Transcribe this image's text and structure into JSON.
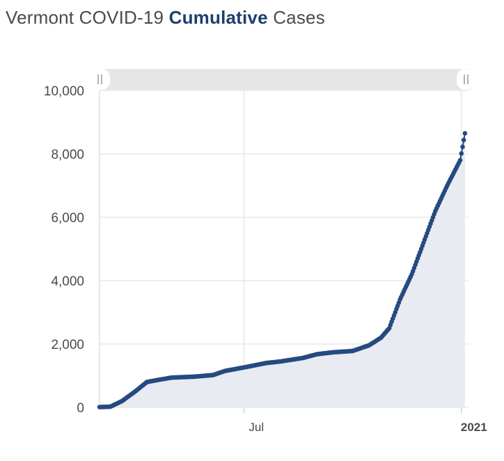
{
  "title": {
    "prefix": "Vermont COVID-19",
    "emphasis": "Cumulative",
    "suffix": "Cases"
  },
  "colors": {
    "series": "#254a80",
    "area_fill": "#e8ebf2",
    "grid": "#dcdcdc",
    "axis_text": "#4a4a4a",
    "navigator_bar": "#e6e6e6"
  },
  "chart_data": {
    "type": "area",
    "title": "Vermont COVID-19 Cumulative Cases",
    "xlabel": "",
    "ylabel": "",
    "ylim": [
      0,
      10000
    ],
    "yticks": [
      0,
      2000,
      4000,
      6000,
      8000,
      10000
    ],
    "ytick_labels": [
      "0",
      "2,000",
      "4,000",
      "6,000",
      "8,000",
      "10,000"
    ],
    "xlim": [
      "2020-03-01",
      "2021-01-07"
    ],
    "xticks": [
      {
        "date": "2020-07-01",
        "label": "Jul",
        "bold": false
      },
      {
        "date": "2021-01-01",
        "label": "2021",
        "bold": true
      }
    ],
    "grid": true,
    "markers": true,
    "series": [
      {
        "x": [
          "2020-03-01",
          "2020-03-10",
          "2020-03-20",
          "2020-03-31",
          "2020-04-10",
          "2020-04-20",
          "2020-05-01",
          "2020-05-20",
          "2020-06-05",
          "2020-06-15",
          "2020-07-01",
          "2020-07-20",
          "2020-08-01",
          "2020-08-20",
          "2020-09-01",
          "2020-09-15",
          "2020-10-01",
          "2020-10-15",
          "2020-10-25",
          "2020-11-01",
          "2020-11-10",
          "2020-11-20",
          "2020-11-30",
          "2020-12-10",
          "2020-12-20",
          "2020-12-31",
          "2021-01-04"
        ],
        "y": [
          10,
          20,
          200,
          500,
          800,
          870,
          940,
          970,
          1020,
          1150,
          1260,
          1400,
          1450,
          1560,
          1680,
          1740,
          1780,
          1960,
          2200,
          2500,
          3400,
          4200,
          5200,
          6200,
          7000,
          7800,
          8650
        ]
      }
    ]
  }
}
